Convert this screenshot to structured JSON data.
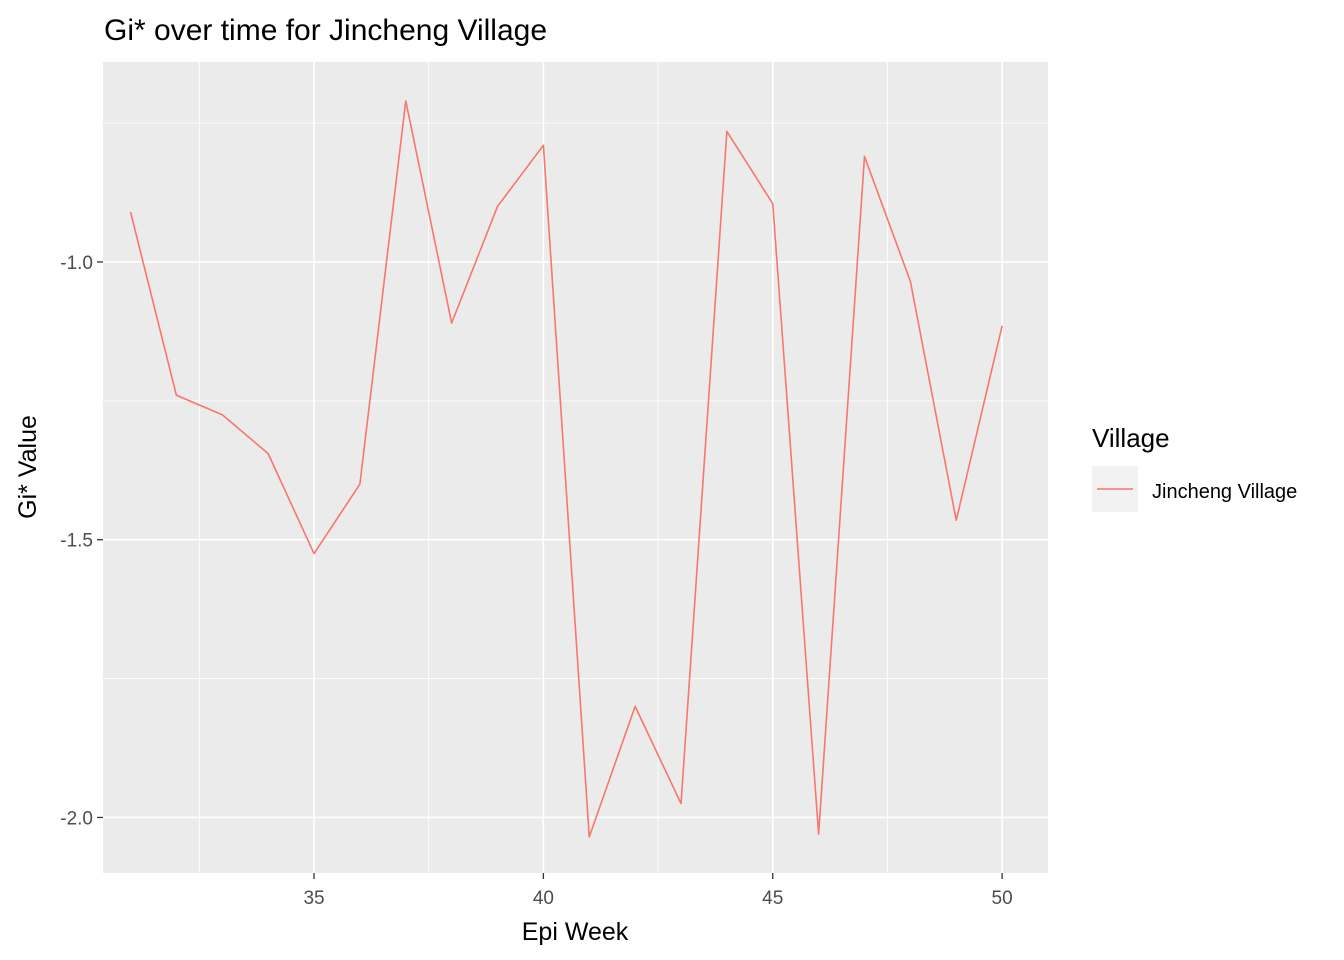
{
  "chart_data": {
    "type": "line",
    "title": "Gi* over time for Jincheng Village",
    "xlabel": "Epi Week",
    "ylabel": "Gi* Value",
    "xlim": [
      30.4,
      51.0
    ],
    "ylim": [
      -2.1,
      -0.64
    ],
    "x_ticks": [
      35,
      40,
      45,
      50
    ],
    "x_tick_labels": [
      "35",
      "40",
      "45",
      "50"
    ],
    "y_ticks": [
      -1.0,
      -1.5,
      -2.0
    ],
    "y_tick_labels": [
      "-1.0",
      "-1.5",
      "-2.0"
    ],
    "grid": true,
    "legend": {
      "title": "Village",
      "position": "right"
    },
    "series": [
      {
        "name": "Jincheng Village",
        "color": "#F8766D",
        "x": [
          31,
          32,
          33,
          34,
          35,
          36,
          37,
          38,
          39,
          40,
          41,
          42,
          43,
          44,
          45,
          46,
          47,
          48,
          49,
          50
        ],
        "y": [
          -0.91,
          -1.24,
          -1.275,
          -1.345,
          -1.525,
          -1.4,
          -0.71,
          -1.11,
          -0.9,
          -0.79,
          -2.035,
          -1.8,
          -1.975,
          -0.765,
          -0.895,
          -2.03,
          -0.81,
          -1.035,
          -1.465,
          -1.115
        ]
      }
    ]
  }
}
